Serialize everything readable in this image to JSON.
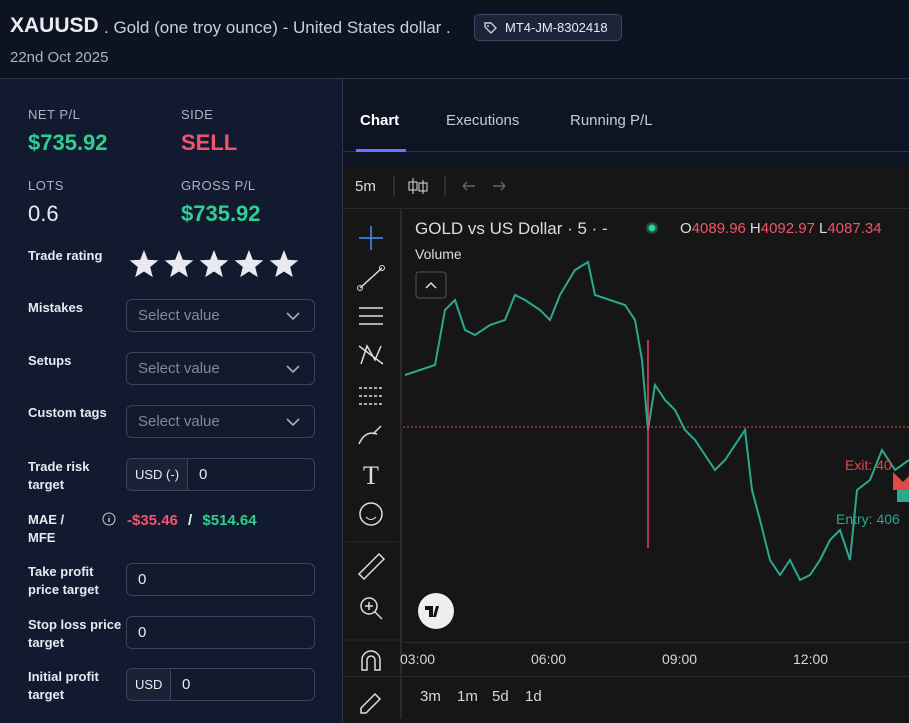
{
  "header": {
    "symbol": "XAUUSD",
    "description": ". Gold (one troy ounce) - United States dollar .",
    "tag": "MT4-JM-8302418",
    "date": "22nd Oct 2025"
  },
  "summary": {
    "net_pl": {
      "label": "NET P/L",
      "value": "$735.92"
    },
    "side": {
      "label": "SIDE",
      "value": "SELL"
    },
    "lots": {
      "label": "LOTS",
      "value": "0.6"
    },
    "gross_pl": {
      "label": "GROSS P/L",
      "value": "$735.92"
    }
  },
  "trade_rating": {
    "label": "Trade rating",
    "stars": 5
  },
  "mistakes": {
    "label": "Mistakes",
    "placeholder": "Select value"
  },
  "setups": {
    "label": "Setups",
    "placeholder": "Select value"
  },
  "custom_tags": {
    "label": "Custom tags",
    "placeholder": "Select value"
  },
  "trade_risk_target": {
    "label": "Trade risk target",
    "unit": "USD (-)",
    "value": "0"
  },
  "mae_mfe": {
    "label": "MAE / MFE",
    "mae": "-$35.46",
    "separator": "/",
    "mfe": "$514.64"
  },
  "take_profit": {
    "label": "Take profit price target",
    "value": "0"
  },
  "stop_loss": {
    "label": "Stop loss price target",
    "value": "0"
  },
  "initial_profit": {
    "label": "Initial profit target",
    "unit": "USD",
    "value": "0"
  },
  "tabs": [
    "Chart",
    "Executions",
    "Running P/L"
  ],
  "chart": {
    "interval": "5m",
    "title": "GOLD vs US Dollar · 5 · -",
    "volume_label": "Volume",
    "ohlc": [
      {
        "key": "O",
        "value": "4089.96"
      },
      {
        "key": "H",
        "value": "4092.97"
      },
      {
        "key": "L",
        "value": "4087.34"
      }
    ],
    "exit_label": "Exit: 40",
    "entry_label": "Entry: 406",
    "time_labels": [
      "03:00",
      "06:00",
      "09:00",
      "12:00"
    ],
    "ranges": [
      "3m",
      "1m",
      "5d",
      "1d"
    ]
  }
}
